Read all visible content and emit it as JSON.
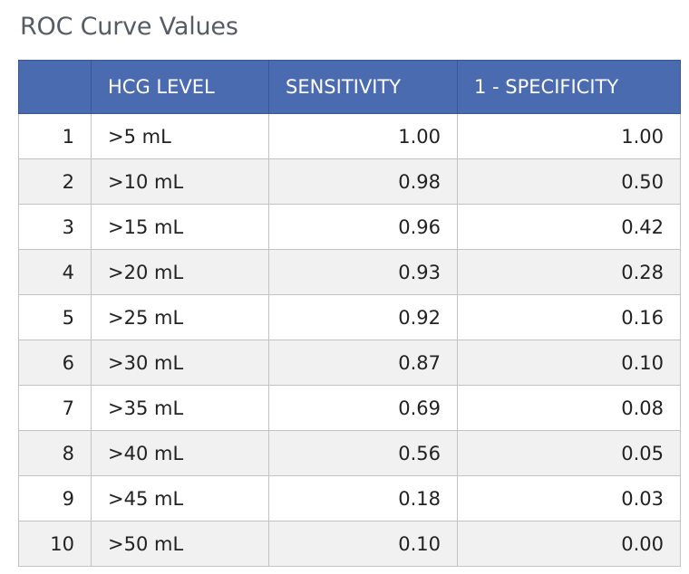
{
  "title": "ROC Curve Values",
  "chart_data": {
    "type": "table",
    "title": "ROC Curve Values",
    "columns": [
      "",
      "HCG LEVEL",
      "SENSITIVITY",
      "1 - SPECIFICITY"
    ],
    "rows": [
      [
        "1",
        ">5 mL",
        "1.00",
        "1.00"
      ],
      [
        "2",
        ">10 mL",
        "0.98",
        "0.50"
      ],
      [
        "3",
        ">15 mL",
        "0.96",
        "0.42"
      ],
      [
        "4",
        ">20 mL",
        "0.93",
        "0.28"
      ],
      [
        "5",
        ">25 mL",
        "0.92",
        "0.16"
      ],
      [
        "6",
        ">30 mL",
        "0.87",
        "0.10"
      ],
      [
        "7",
        ">35 mL",
        "0.69",
        "0.08"
      ],
      [
        "8",
        ">40 mL",
        "0.56",
        "0.05"
      ],
      [
        "9",
        ">45 mL",
        "0.18",
        "0.03"
      ],
      [
        "10",
        ">50 mL",
        "0.10",
        "0.00"
      ]
    ]
  },
  "colors": {
    "header_bg": "#4a6bb0",
    "header_text": "#ffffff",
    "stripe": "#f1f1f1",
    "title_text": "#555c66"
  }
}
